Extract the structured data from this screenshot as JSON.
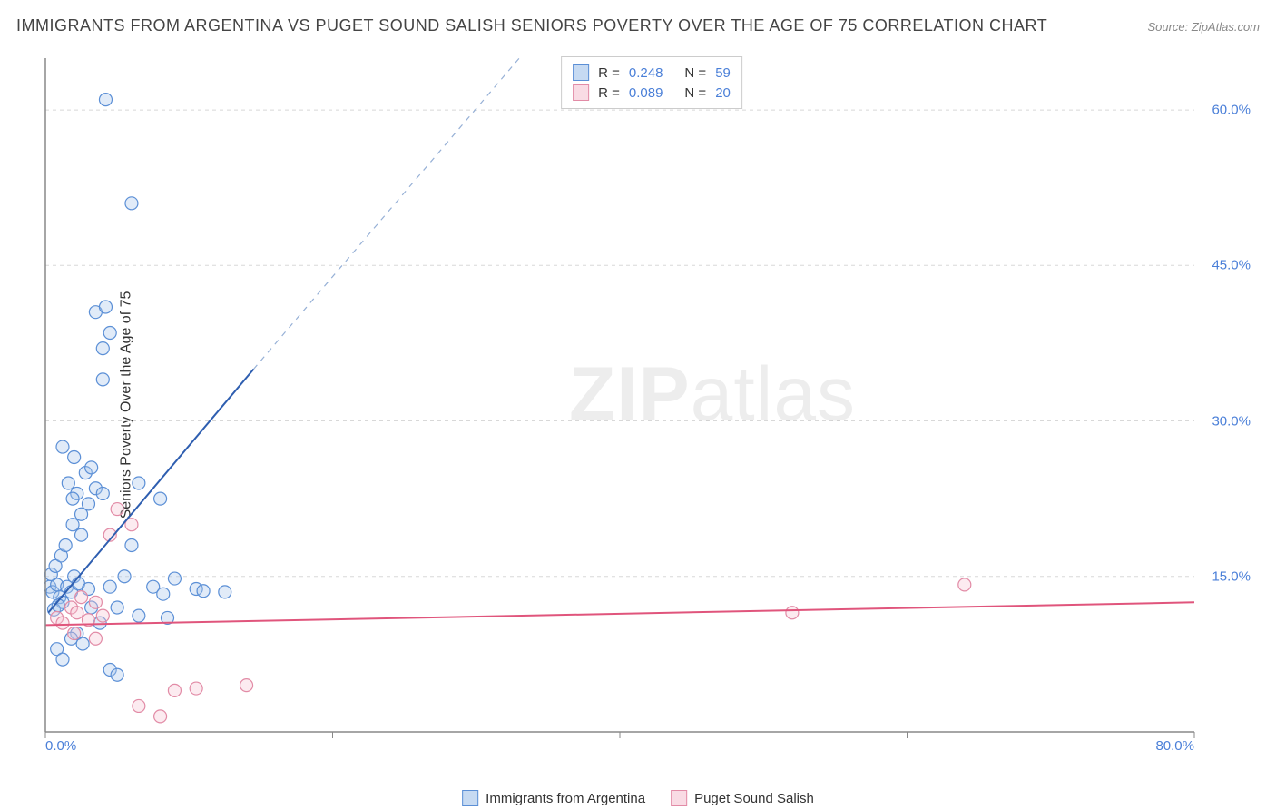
{
  "title": "IMMIGRANTS FROM ARGENTINA VS PUGET SOUND SALISH SENIORS POVERTY OVER THE AGE OF 75 CORRELATION CHART",
  "source": "Source: ZipAtlas.com",
  "y_axis_label": "Seniors Poverty Over the Age of 75",
  "watermark_bold": "ZIP",
  "watermark_light": "atlas",
  "chart": {
    "type": "scatter",
    "background_color": "#ffffff",
    "border_color": "#888888",
    "grid_color": "#d8d8d8",
    "grid_dash": "4,4",
    "axis_label_color": "#4a7fd8",
    "xlim": [
      0,
      80
    ],
    "ylim": [
      0,
      65
    ],
    "x_ticks": [
      0,
      20,
      40,
      60,
      80
    ],
    "x_tick_labels": [
      "0.0%",
      "",
      "",
      "",
      "80.0%"
    ],
    "x_tick_show_label": [
      true,
      false,
      false,
      false,
      true
    ],
    "y_ticks": [
      15,
      30,
      45,
      60
    ],
    "y_tick_labels": [
      "15.0%",
      "30.0%",
      "45.0%",
      "60.0%"
    ],
    "marker_radius": 7,
    "marker_stroke_width": 1.2,
    "marker_fill_opacity": 0.35,
    "series": [
      {
        "name": "Immigrants from Argentina",
        "color_stroke": "#5b8fd6",
        "color_fill": "#a8c6ec",
        "swatch_fill": "#c6daf2",
        "swatch_stroke": "#5b8fd6",
        "R": "0.248",
        "N": "59",
        "trend": {
          "solid": {
            "x1": 0.2,
            "y1": 11.5,
            "x2": 14.5,
            "y2": 35.0,
            "color": "#2e5eb0",
            "width": 2
          },
          "dashed": {
            "x1": 14.5,
            "y1": 35.0,
            "x2": 33.0,
            "y2": 65.0,
            "color": "#96b0d6",
            "width": 1.2,
            "dash": "6,6"
          }
        },
        "points": [
          [
            0.3,
            14
          ],
          [
            0.5,
            13.5
          ],
          [
            0.8,
            14.2
          ],
          [
            1.0,
            13
          ],
          [
            1.2,
            12.5
          ],
          [
            0.6,
            11.8
          ],
          [
            0.9,
            12.2
          ],
          [
            1.5,
            14
          ],
          [
            1.8,
            13.5
          ],
          [
            2.0,
            15
          ],
          [
            2.3,
            14.3
          ],
          [
            0.4,
            15.2
          ],
          [
            0.7,
            16
          ],
          [
            1.1,
            17
          ],
          [
            1.4,
            18
          ],
          [
            1.9,
            20
          ],
          [
            2.5,
            21
          ],
          [
            3.0,
            22
          ],
          [
            2.2,
            23
          ],
          [
            1.6,
            24
          ],
          [
            2.8,
            25
          ],
          [
            3.5,
            23.5
          ],
          [
            3.2,
            25.5
          ],
          [
            4.0,
            23
          ],
          [
            2.0,
            26.5
          ],
          [
            1.2,
            27.5
          ],
          [
            6.5,
            24
          ],
          [
            8.0,
            22.5
          ],
          [
            6.0,
            18
          ],
          [
            5.5,
            15
          ],
          [
            5.0,
            12
          ],
          [
            4.5,
            14
          ],
          [
            7.5,
            14
          ],
          [
            8.5,
            11
          ],
          [
            6.5,
            11.2
          ],
          [
            3.8,
            10.5
          ],
          [
            3.2,
            12
          ],
          [
            2.2,
            9.5
          ],
          [
            2.6,
            8.5
          ],
          [
            1.8,
            9
          ],
          [
            0.8,
            8
          ],
          [
            1.2,
            7
          ],
          [
            4.5,
            6
          ],
          [
            5.0,
            5.5
          ],
          [
            3.0,
            13.8
          ],
          [
            4.0,
            37
          ],
          [
            4.5,
            38.5
          ],
          [
            4.0,
            34
          ],
          [
            3.5,
            40.5
          ],
          [
            4.2,
            41
          ],
          [
            6.0,
            51
          ],
          [
            4.2,
            61
          ],
          [
            10.5,
            13.8
          ],
          [
            11.0,
            13.6
          ],
          [
            12.5,
            13.5
          ],
          [
            8.2,
            13.3
          ],
          [
            9.0,
            14.8
          ],
          [
            2.5,
            19
          ],
          [
            1.9,
            22.5
          ]
        ]
      },
      {
        "name": "Puget Sound Salish",
        "color_stroke": "#e28ba6",
        "color_fill": "#f5c5d4",
        "swatch_fill": "#f9dbe4",
        "swatch_stroke": "#e28ba6",
        "R": "0.089",
        "N": "20",
        "trend": {
          "solid": {
            "x1": 0,
            "y1": 10.3,
            "x2": 80,
            "y2": 12.5,
            "color": "#e0557c",
            "width": 2
          }
        },
        "points": [
          [
            0.8,
            11
          ],
          [
            1.2,
            10.5
          ],
          [
            1.8,
            12
          ],
          [
            2.2,
            11.5
          ],
          [
            3.0,
            10.8
          ],
          [
            4.0,
            11.2
          ],
          [
            2.5,
            13
          ],
          [
            3.5,
            12.5
          ],
          [
            5.0,
            21.5
          ],
          [
            6.0,
            20
          ],
          [
            4.5,
            19
          ],
          [
            3.5,
            9
          ],
          [
            2.0,
            9.5
          ],
          [
            6.5,
            2.5
          ],
          [
            9.0,
            4
          ],
          [
            10.5,
            4.2
          ],
          [
            14.0,
            4.5
          ],
          [
            8.0,
            1.5
          ],
          [
            52,
            11.5
          ],
          [
            64,
            14.2
          ]
        ]
      }
    ]
  },
  "legend_bottom": [
    {
      "label": "Immigrants from Argentina",
      "series": 0
    },
    {
      "label": "Puget Sound Salish",
      "series": 1
    }
  ]
}
